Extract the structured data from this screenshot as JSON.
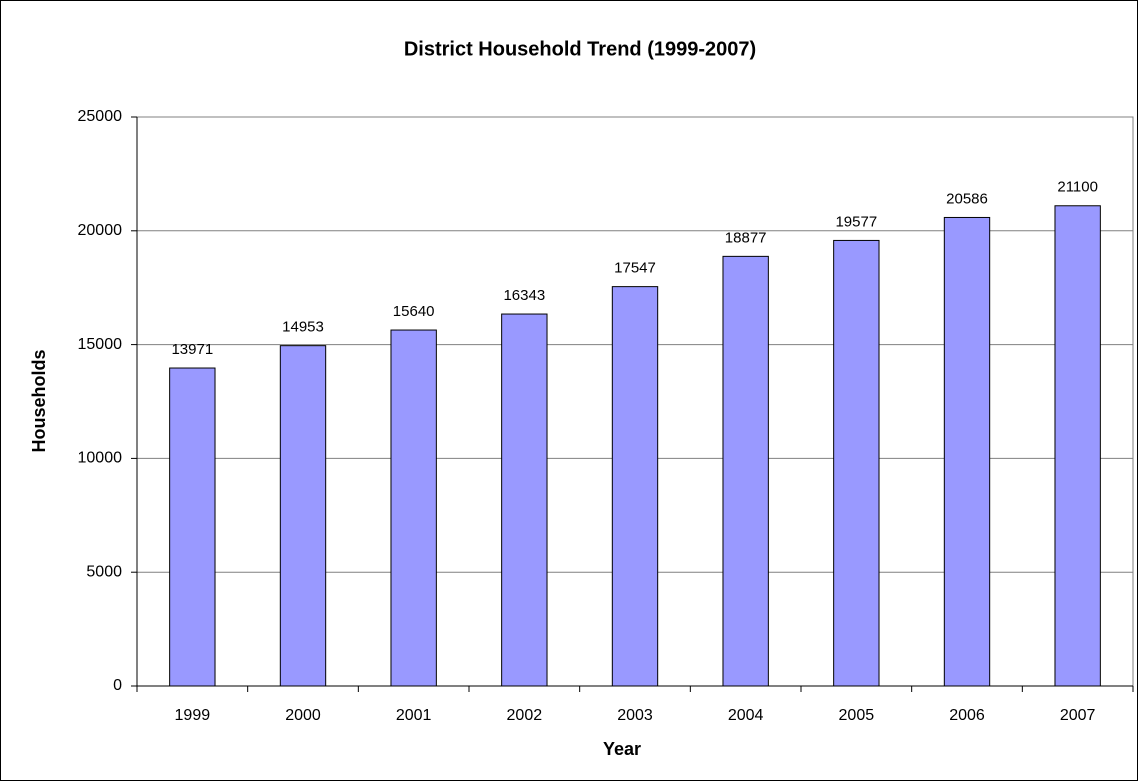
{
  "chart_data": {
    "type": "bar",
    "title": "District Household Trend (1999-2007)",
    "x_label": "Year",
    "y_label": "Households",
    "categories": [
      "1999",
      "2000",
      "2001",
      "2002",
      "2003",
      "2004",
      "2005",
      "2006",
      "2007"
    ],
    "values": [
      13971,
      14953,
      15640,
      16343,
      17547,
      18877,
      19577,
      20586,
      21100
    ],
    "color": "#9999ff",
    "ylim": [
      0,
      25000
    ],
    "yticks": [
      0,
      5000,
      10000,
      15000,
      20000,
      25000
    ],
    "grid": true
  }
}
